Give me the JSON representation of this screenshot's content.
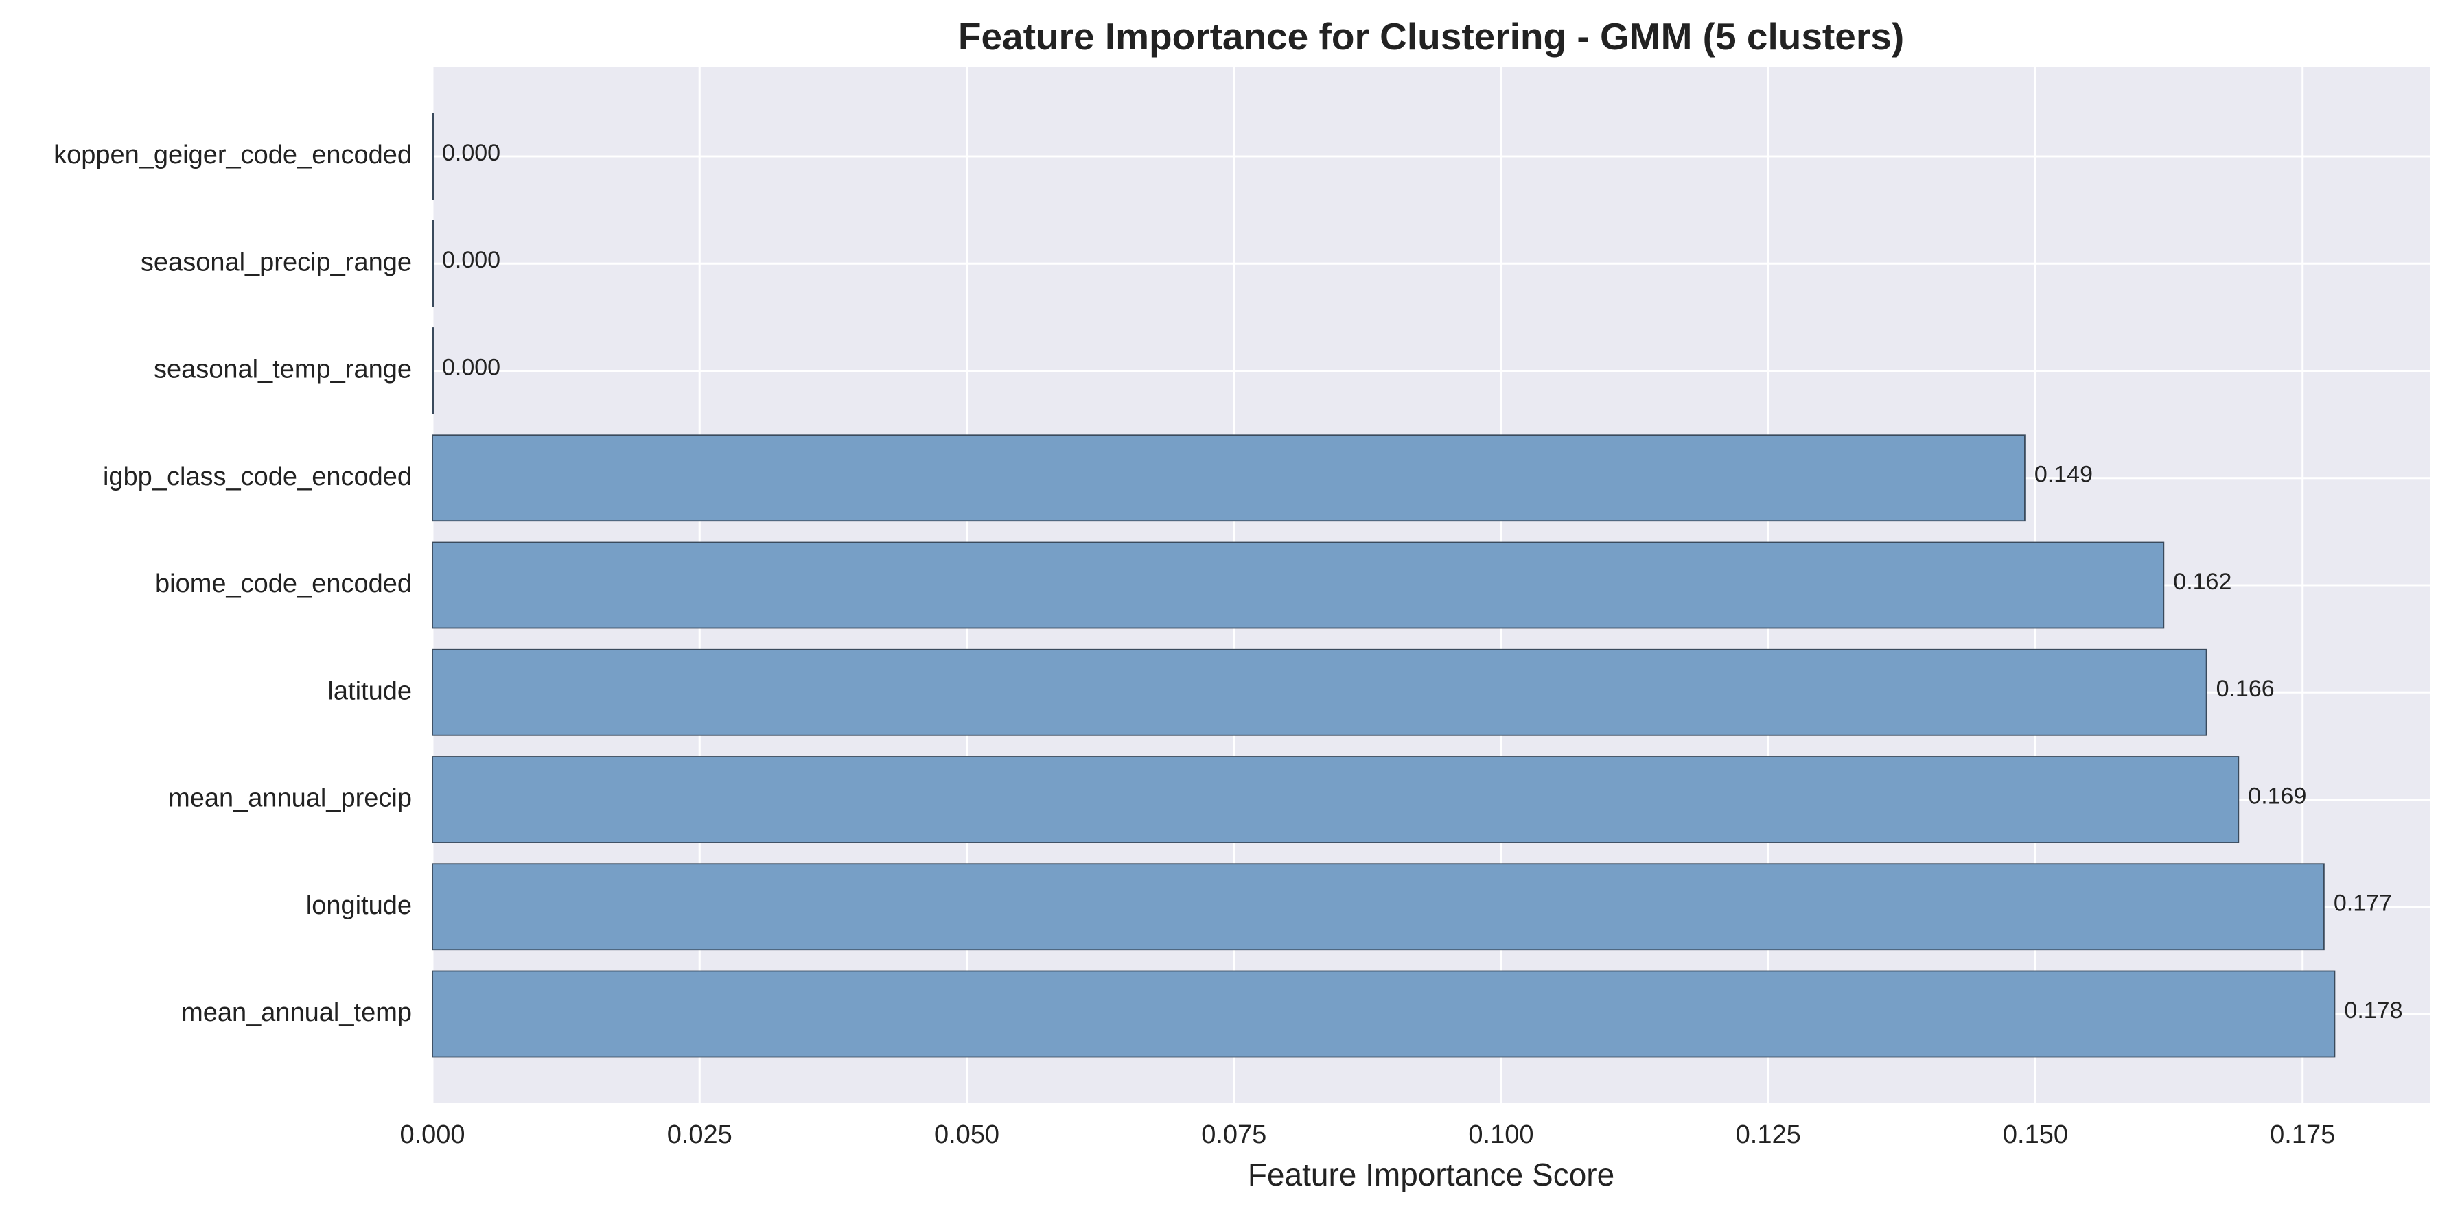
{
  "chart_data": {
    "type": "bar",
    "orientation": "horizontal",
    "title": "Feature Importance for Clustering - GMM (5 clusters)",
    "xlabel": "Feature Importance Score",
    "ylabel": "",
    "categories": [
      "koppen_geiger_code_encoded",
      "seasonal_precip_range",
      "seasonal_temp_range",
      "igbp_class_code_encoded",
      "biome_code_encoded",
      "latitude",
      "mean_annual_precip",
      "longitude",
      "mean_annual_temp"
    ],
    "values": [
      0.0,
      0.0,
      0.0,
      0.149,
      0.162,
      0.166,
      0.169,
      0.177,
      0.178
    ],
    "value_labels": [
      "0.000",
      "0.000",
      "0.000",
      "0.149",
      "0.162",
      "0.166",
      "0.169",
      "0.177",
      "0.178"
    ],
    "xlim": [
      0,
      0.1869
    ],
    "xticks": [
      0.0,
      0.025,
      0.05,
      0.075,
      0.1,
      0.125,
      0.15,
      0.175
    ],
    "xtick_labels": [
      "0.000",
      "0.025",
      "0.050",
      "0.075",
      "0.100",
      "0.125",
      "0.150",
      "0.175"
    ],
    "grid": true,
    "legend": "none",
    "colors": {
      "bar": "#779fc6",
      "bar_edge": "#3a4a5c",
      "plot_background": "#eaeaf2",
      "grid": "#ffffff",
      "text": "#222222"
    }
  }
}
